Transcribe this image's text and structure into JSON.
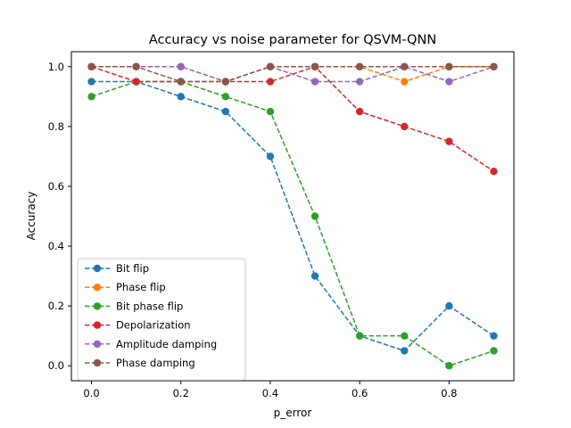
{
  "chart_data": {
    "type": "line",
    "title": "Accuracy vs noise parameter for QSVM-QNN",
    "xlabel": "p_error",
    "ylabel": "Accuracy",
    "x": [
      0.0,
      0.1,
      0.2,
      0.3,
      0.4,
      0.5,
      0.6,
      0.7,
      0.8,
      0.9
    ],
    "xlim": [
      -0.045,
      0.945
    ],
    "ylim": [
      -0.05,
      1.05
    ],
    "xticks": [
      "0.0",
      "0.2",
      "0.4",
      "0.6",
      "0.8"
    ],
    "yticks": [
      "0.0",
      "0.2",
      "0.4",
      "0.6",
      "0.8",
      "1.0"
    ],
    "grid": false,
    "legend_position": "lower-left",
    "line_style": "dashed",
    "marker": "circle",
    "series": [
      {
        "name": "Bit flip",
        "color": "#1f77b4",
        "values": [
          0.95,
          0.95,
          0.9,
          0.85,
          0.7,
          0.3,
          0.1,
          0.05,
          0.2,
          0.1
        ]
      },
      {
        "name": "Phase flip",
        "color": "#ff7f0e",
        "values": [
          1.0,
          1.0,
          1.0,
          0.95,
          1.0,
          1.0,
          1.0,
          0.95,
          1.0,
          1.0
        ]
      },
      {
        "name": "Bit phase flip",
        "color": "#2ca02c",
        "values": [
          0.9,
          0.95,
          0.95,
          0.9,
          0.85,
          0.5,
          0.1,
          0.1,
          0.0,
          0.05
        ]
      },
      {
        "name": "Depolarization",
        "color": "#d62728",
        "values": [
          1.0,
          0.95,
          0.95,
          0.95,
          0.95,
          1.0,
          0.85,
          0.8,
          0.75,
          0.65
        ]
      },
      {
        "name": "Amplitude damping",
        "color": "#9467bd",
        "values": [
          1.0,
          1.0,
          1.0,
          0.95,
          1.0,
          0.95,
          0.95,
          1.0,
          0.95,
          1.0
        ]
      },
      {
        "name": "Phase damping",
        "color": "#8c564b",
        "values": [
          1.0,
          1.0,
          0.95,
          0.95,
          1.0,
          1.0,
          1.0,
          1.0,
          1.0,
          1.0
        ]
      }
    ]
  }
}
